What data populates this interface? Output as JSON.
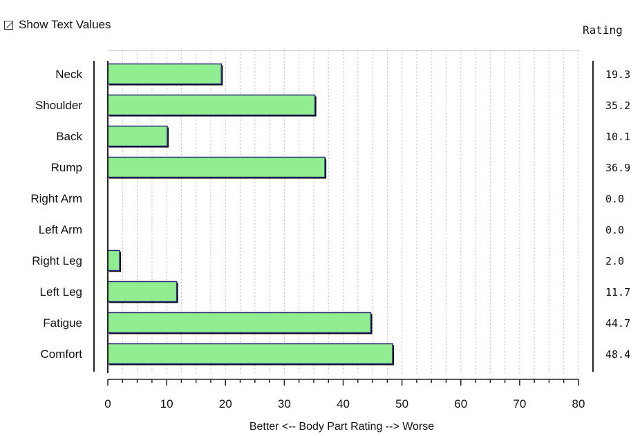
{
  "controls": {
    "show_text_values_label": "Show Text Values",
    "show_text_values_checked": true
  },
  "value_column_header": "Rating",
  "chart_data": {
    "type": "bar",
    "orientation": "horizontal",
    "categories": [
      "Neck",
      "Shoulder",
      "Back",
      "Rump",
      "Right Arm",
      "Left Arm",
      "Right Leg",
      "Left Leg",
      "Fatigue",
      "Comfort"
    ],
    "values": [
      19.3,
      35.2,
      10.1,
      36.9,
      0.0,
      0.0,
      2.0,
      11.7,
      44.7,
      48.4
    ],
    "value_labels": [
      "19.3",
      "35.2",
      "10.1",
      "36.9",
      "0.0",
      "0.0",
      "2.0",
      "11.7",
      "44.7",
      "48.4"
    ],
    "xlabel": "Better <-- Body Part Rating --> Worse",
    "xlim": [
      0,
      80
    ],
    "xticks": [
      0,
      10,
      20,
      30,
      40,
      50,
      60,
      70,
      80
    ],
    "grid": "vertical dotted",
    "colors": {
      "bar_fill": "#90EE90",
      "bar_border": "#2a2a7a",
      "bar_shadow": "#000000",
      "grid": "#bdbdbd"
    }
  }
}
